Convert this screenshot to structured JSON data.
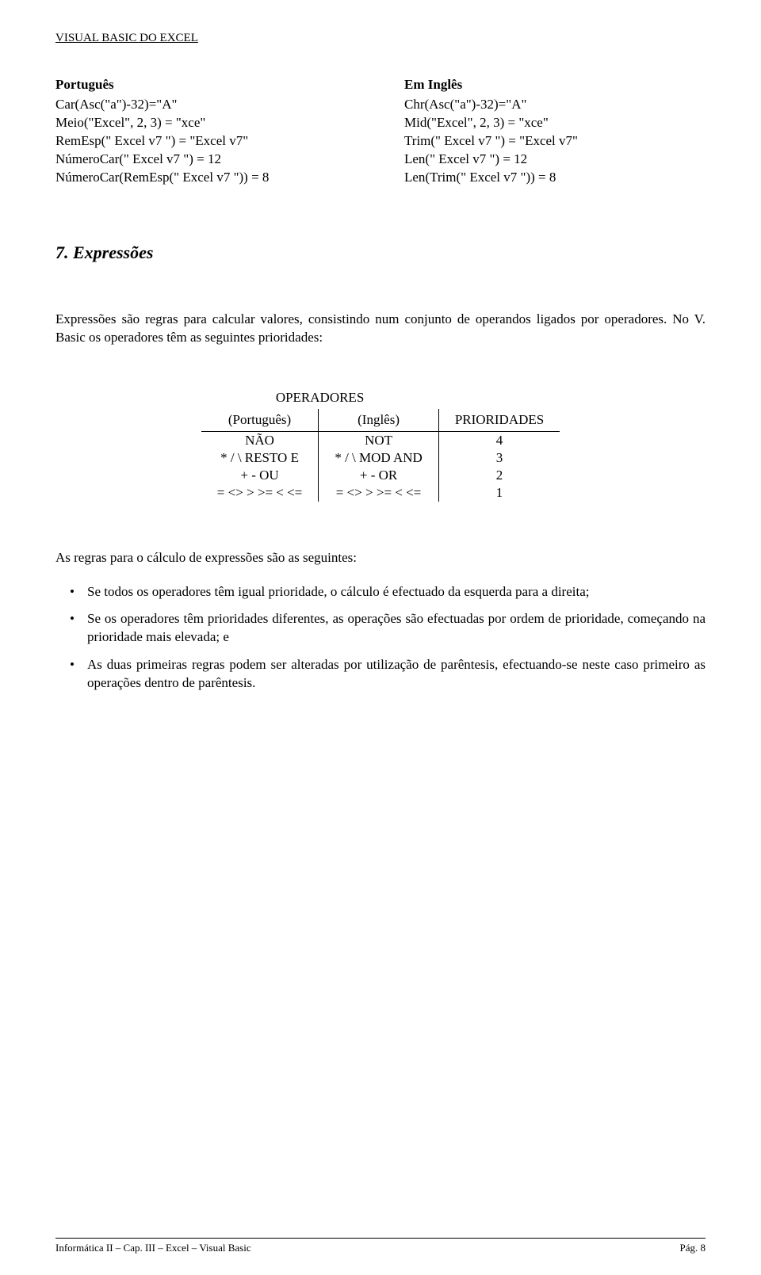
{
  "header": "VISUAL BASIC DO EXCEL",
  "columns": {
    "left": {
      "heading": "Português",
      "lines": [
        "Car(Asc(\"a\")-32)=\"A\"",
        "Meio(\"Excel\", 2, 3) = \"xce\"",
        "RemEsp(\"  Excel v7  \") = \"Excel v7\"",
        "NúmeroCar(\"  Excel v7  \") = 12",
        "NúmeroCar(RemEsp(\"  Excel v7  \")) = 8"
      ]
    },
    "right": {
      "heading": "Em Inglês",
      "lines": [
        "Chr(Asc(\"a\")-32)=\"A\"",
        "Mid(\"Excel\", 2, 3) = \"xce\"",
        "Trim(\"  Excel v7  \") = \"Excel v7\"",
        "Len(\"  Excel v7  \") = 12",
        "Len(Trim(\"  Excel v7  \")) = 8"
      ]
    }
  },
  "section": {
    "title": "7. Expressões",
    "intro": "Expressões são regras para calcular valores, consistindo num conjunto de operandos ligados por operadores. No V. Basic os operadores têm as seguintes prioridades:"
  },
  "table": {
    "top_header": "OPERADORES",
    "col_headers": [
      "(Português)",
      "(Inglês)",
      "PRIORIDADES"
    ],
    "rows": [
      [
        "NÃO",
        "NOT",
        "4"
      ],
      [
        "*   /   \\  RESTO  E",
        "*   /   \\ MOD  AND",
        "3"
      ],
      [
        "+   -   OU",
        "+   -   OR",
        "2"
      ],
      [
        "=   <>   >   >=   <   <=",
        "=   <>   >   >=   <   <=",
        "1"
      ]
    ]
  },
  "rules_intro": "As regras para o cálculo de expressões são as seguintes:",
  "bullets": [
    "Se todos os operadores têm igual prioridade, o cálculo é efectuado da esquerda para a direita;",
    "Se os operadores têm prioridades diferentes, as operações são efectuadas por ordem de prioridade, começando na prioridade mais elevada; e",
    "As duas primeiras regras podem ser alteradas por utilização de parêntesis, efectuando-se neste caso primeiro as operações dentro de parêntesis."
  ],
  "footer": {
    "left": "Informática II – Cap. III – Excel – Visual Basic",
    "right": "Pág.  8"
  }
}
